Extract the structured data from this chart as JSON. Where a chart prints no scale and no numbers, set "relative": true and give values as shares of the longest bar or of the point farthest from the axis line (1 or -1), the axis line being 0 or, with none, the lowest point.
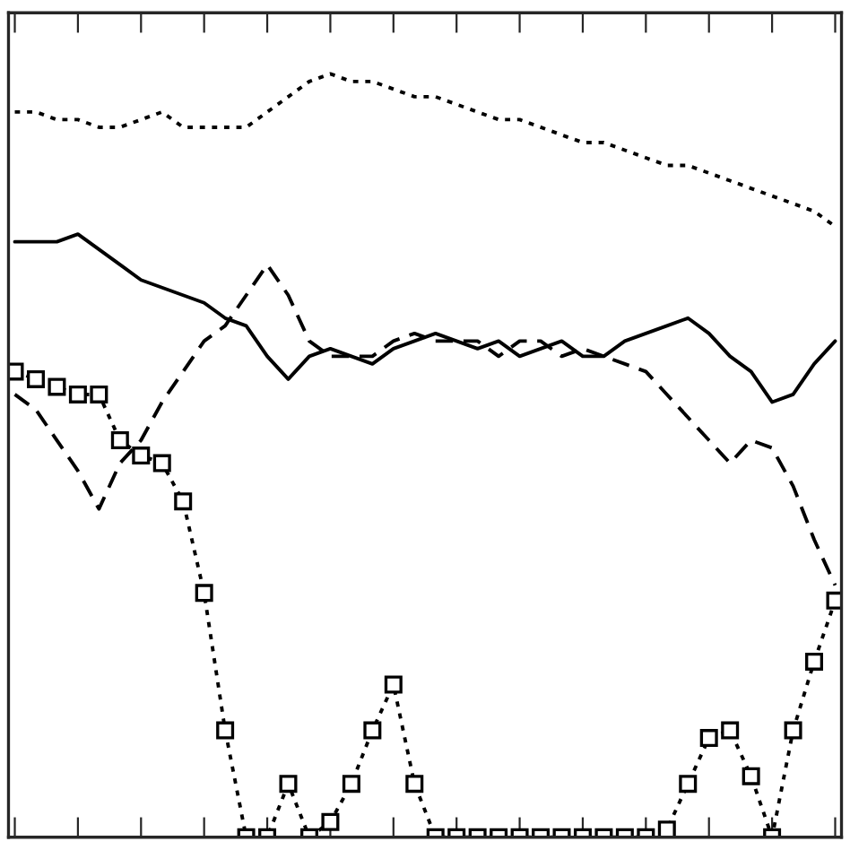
{
  "chart_data": {
    "type": "line",
    "relative": true,
    "grid": false,
    "legend": false,
    "categories": [
      null,
      null,
      null,
      null,
      null,
      null,
      null,
      null,
      null,
      null,
      null,
      null,
      null,
      null,
      null,
      null,
      null,
      null,
      null,
      null,
      null,
      null,
      null,
      null,
      null,
      null,
      null,
      null,
      null,
      null,
      null,
      null,
      null,
      null,
      null,
      null,
      null,
      null,
      null,
      null
    ],
    "series": [
      {
        "color": "#000000",
        "line_style": "dotted",
        "marker": "none",
        "values": [
          0.95,
          0.95,
          0.94,
          0.94,
          0.93,
          0.93,
          0.94,
          0.95,
          0.93,
          0.93,
          0.93,
          0.93,
          0.95,
          0.97,
          0.99,
          1.0,
          0.99,
          0.99,
          0.98,
          0.97,
          0.97,
          0.96,
          0.95,
          0.94,
          0.94,
          0.93,
          0.92,
          0.91,
          0.91,
          0.9,
          0.89,
          0.88,
          0.88,
          0.87,
          0.86,
          0.85,
          0.84,
          0.83,
          0.82,
          0.8
        ]
      },
      {
        "color": "#000000",
        "line_style": "solid",
        "marker": "none",
        "values": [
          0.78,
          0.78,
          0.78,
          0.79,
          0.77,
          0.75,
          0.73,
          0.72,
          0.71,
          0.7,
          0.68,
          0.67,
          0.63,
          0.6,
          0.63,
          0.64,
          0.63,
          0.62,
          0.64,
          0.65,
          0.66,
          0.65,
          0.64,
          0.65,
          0.63,
          0.64,
          0.65,
          0.63,
          0.63,
          0.65,
          0.66,
          0.67,
          0.68,
          0.66,
          0.63,
          0.61,
          0.57,
          0.58,
          0.62,
          0.65
        ]
      },
      {
        "color": "#000000",
        "line_style": "dashed",
        "marker": "none",
        "values": [
          0.58,
          0.56,
          0.52,
          0.48,
          0.43,
          0.49,
          0.52,
          0.57,
          0.61,
          0.65,
          0.67,
          0.71,
          0.75,
          0.71,
          0.65,
          0.63,
          0.63,
          0.63,
          0.65,
          0.66,
          0.65,
          0.65,
          0.65,
          0.63,
          0.65,
          0.65,
          0.63,
          0.64,
          0.63,
          0.62,
          0.61,
          0.58,
          0.55,
          0.52,
          0.49,
          0.52,
          0.51,
          0.46,
          0.39,
          0.33
        ]
      },
      {
        "color": "#000000",
        "line_style": "dotted",
        "marker": "square",
        "values": [
          0.61,
          0.6,
          0.59,
          0.58,
          0.58,
          0.52,
          0.5,
          0.49,
          0.44,
          0.32,
          0.14,
          0,
          0,
          0.07,
          0,
          0.02,
          0.07,
          0.14,
          0.2,
          0.07,
          0,
          0,
          0,
          0,
          0,
          0,
          0,
          0,
          0,
          0,
          0,
          0.01,
          0.07,
          0.13,
          0.14,
          0.08,
          0,
          0.14,
          0.23,
          0.31
        ]
      }
    ]
  }
}
